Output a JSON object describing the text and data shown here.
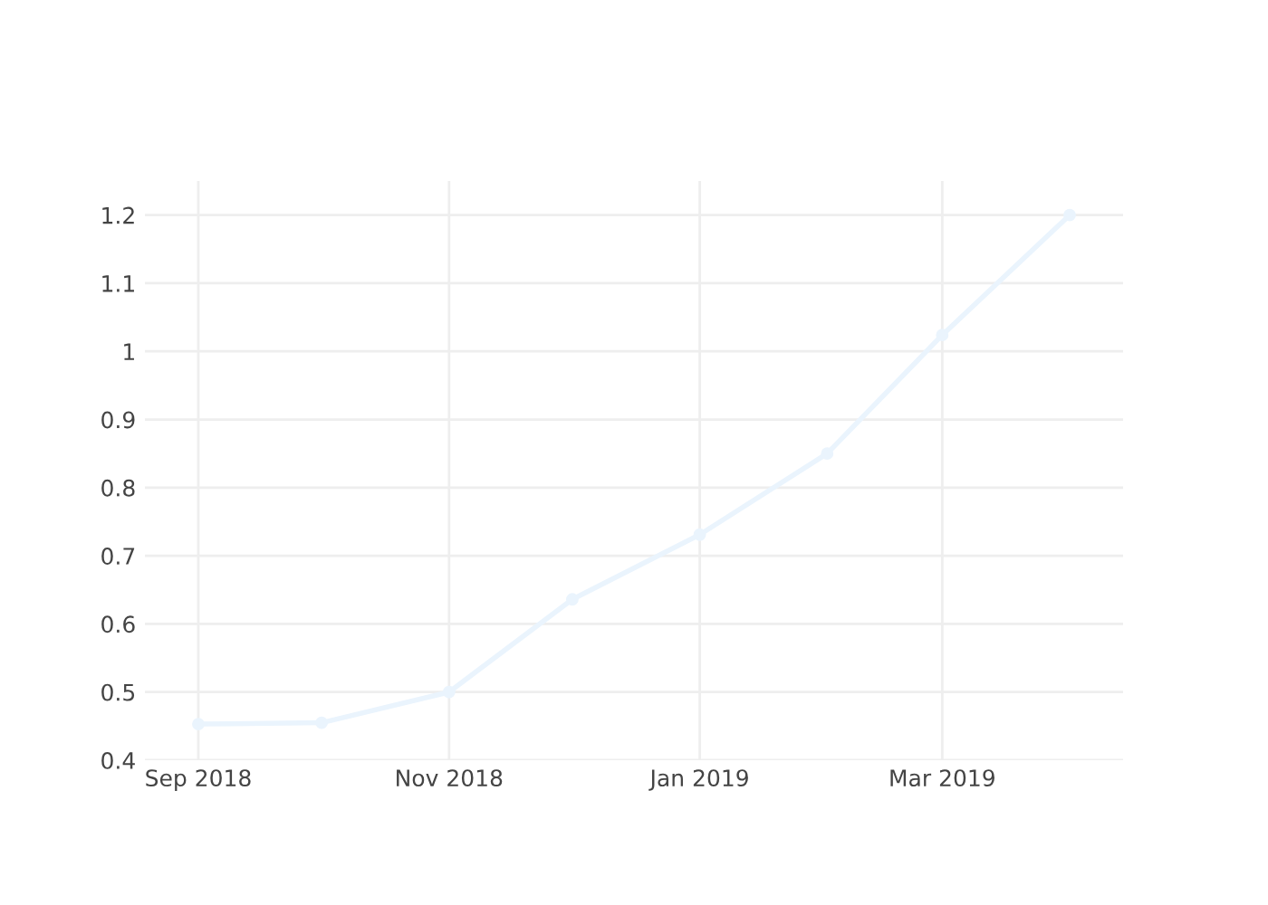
{
  "chart_data": {
    "type": "line",
    "x": [
      "2018-09-01",
      "2018-10-01",
      "2018-11-01",
      "2018-12-01",
      "2019-01-01",
      "2019-02-01",
      "2019-03-01",
      "2019-04-01"
    ],
    "series": [
      {
        "color": "#eaf4fd",
        "values": [
          0.453,
          0.455,
          0.5,
          0.636,
          0.731,
          0.85,
          1.024,
          1.2
        ]
      }
    ],
    "xlim": [
      "2018-08-19",
      "2019-04-14"
    ],
    "xticks": [
      {
        "value": "2018-09-01",
        "label": "Sep 2018"
      },
      {
        "value": "2018-11-01",
        "label": "Nov 2018"
      },
      {
        "value": "2019-01-01",
        "label": "Jan 2019"
      },
      {
        "value": "2019-03-01",
        "label": "Mar 2019"
      }
    ],
    "ylim": [
      0.4,
      1.25
    ],
    "yticks": [
      0.4,
      0.5,
      0.6,
      0.7,
      0.8,
      0.9,
      1,
      1.1,
      1.2
    ],
    "grid": true,
    "marker": "circle",
    "line_style": "solid"
  }
}
